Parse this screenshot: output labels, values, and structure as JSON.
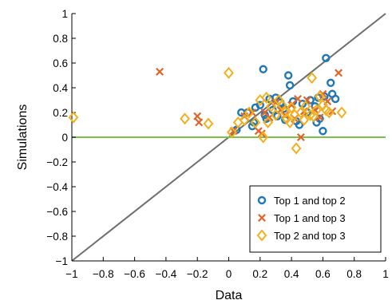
{
  "chart_data": {
    "type": "scatter",
    "title": "",
    "xlabel": "Data",
    "ylabel": "Simulations",
    "xlim": [
      -1,
      1
    ],
    "ylim": [
      -1,
      1
    ],
    "xticks": [
      -1,
      -0.8,
      -0.6,
      -0.4,
      -0.2,
      0,
      0.2,
      0.4,
      0.6,
      0.8,
      1
    ],
    "yticks": [
      -1,
      -0.8,
      -0.6,
      -0.4,
      -0.2,
      0,
      0.2,
      0.4,
      0.6,
      0.8,
      1
    ],
    "xtick_labels": [
      "−1",
      "−0.8",
      "−0.6",
      "−0.4",
      "−0.2",
      "0",
      "0.2",
      "0.4",
      "0.6",
      "0.8",
      "1"
    ],
    "ytick_labels": [
      "−1",
      "−0.8",
      "−0.6",
      "−0.4",
      "−0.2",
      "0",
      "0.2",
      "0.4",
      "0.6",
      "0.8",
      "1"
    ],
    "grid": false,
    "legend_position": "bottom-right",
    "reference_lines": [
      {
        "kind": "identity",
        "color": "#6e6e6e"
      },
      {
        "kind": "horizontal",
        "y": 0,
        "color": "#7cc24a"
      }
    ],
    "series": [
      {
        "name": "Top 1 and top 2",
        "marker": "circle",
        "color": "#1f77b4",
        "points": [
          [
            0.05,
            0.06
          ],
          [
            0.08,
            0.2
          ],
          [
            0.12,
            0.2
          ],
          [
            0.15,
            0.09
          ],
          [
            0.16,
            0.12
          ],
          [
            0.17,
            0.24
          ],
          [
            0.2,
            0.26
          ],
          [
            0.22,
            0.55
          ],
          [
            0.23,
            0.18
          ],
          [
            0.24,
            0.15
          ],
          [
            0.26,
            0.31
          ],
          [
            0.28,
            0.22
          ],
          [
            0.3,
            0.32
          ],
          [
            0.31,
            0.17
          ],
          [
            0.33,
            0.28
          ],
          [
            0.35,
            0.23
          ],
          [
            0.36,
            0.14
          ],
          [
            0.38,
            0.5
          ],
          [
            0.39,
            0.42
          ],
          [
            0.41,
            0.29
          ],
          [
            0.43,
            0.13
          ],
          [
            0.45,
            0.1
          ],
          [
            0.47,
            0.27
          ],
          [
            0.5,
            0.2
          ],
          [
            0.52,
            0.3
          ],
          [
            0.55,
            0.25
          ],
          [
            0.57,
            0.32
          ],
          [
            0.58,
            0.15
          ],
          [
            0.6,
            0.05
          ],
          [
            0.61,
            0.33
          ],
          [
            0.62,
            0.64
          ],
          [
            0.65,
            0.44
          ],
          [
            0.66,
            0.35
          ],
          [
            0.68,
            0.31
          ],
          [
            0.56,
            0.12
          ]
        ]
      },
      {
        "name": "Top 1 and top 3",
        "marker": "x",
        "color": "#e0652a",
        "points": [
          [
            -0.44,
            0.53
          ],
          [
            -0.2,
            0.17
          ],
          [
            -0.19,
            0.12
          ],
          [
            0.03,
            0.05
          ],
          [
            0.1,
            0.17
          ],
          [
            0.15,
            0.2
          ],
          [
            0.19,
            0.05
          ],
          [
            0.21,
            0.03
          ],
          [
            0.23,
            0.2
          ],
          [
            0.26,
            0.16
          ],
          [
            0.3,
            0.28
          ],
          [
            0.33,
            0.22
          ],
          [
            0.36,
            0.18
          ],
          [
            0.4,
            0.26
          ],
          [
            0.42,
            0.15
          ],
          [
            0.44,
            0.31
          ],
          [
            0.46,
            0.0
          ],
          [
            0.48,
            0.21
          ],
          [
            0.5,
            0.3
          ],
          [
            0.55,
            0.22
          ],
          [
            0.58,
            0.16
          ],
          [
            0.6,
            0.35
          ],
          [
            0.63,
            0.29
          ],
          [
            0.66,
            0.21
          ],
          [
            0.7,
            0.52
          ]
        ]
      },
      {
        "name": "Top 2 and top 3",
        "marker": "diamond",
        "color": "#f2b01e",
        "points": [
          [
            -0.99,
            0.16
          ],
          [
            -0.28,
            0.15
          ],
          [
            -0.13,
            0.11
          ],
          [
            0.0,
            0.52
          ],
          [
            0.02,
            0.04
          ],
          [
            0.06,
            0.12
          ],
          [
            0.1,
            0.14
          ],
          [
            0.13,
            0.2
          ],
          [
            0.17,
            0.12
          ],
          [
            0.2,
            0.3
          ],
          [
            0.22,
            0.0
          ],
          [
            0.24,
            0.32
          ],
          [
            0.25,
            0.12
          ],
          [
            0.27,
            0.25
          ],
          [
            0.3,
            0.18
          ],
          [
            0.32,
            0.3
          ],
          [
            0.34,
            0.26
          ],
          [
            0.36,
            0.2
          ],
          [
            0.37,
            0.15
          ],
          [
            0.39,
            0.12
          ],
          [
            0.4,
            0.24
          ],
          [
            0.42,
            0.18
          ],
          [
            0.43,
            -0.09
          ],
          [
            0.46,
            0.2
          ],
          [
            0.48,
            0.14
          ],
          [
            0.49,
            0.25
          ],
          [
            0.52,
            0.18
          ],
          [
            0.53,
            0.48
          ],
          [
            0.54,
            0.17
          ],
          [
            0.56,
            0.22
          ],
          [
            0.58,
            0.33
          ],
          [
            0.6,
            0.26
          ],
          [
            0.62,
            0.22
          ],
          [
            0.64,
            0.2
          ],
          [
            0.72,
            0.2
          ]
        ]
      }
    ]
  }
}
